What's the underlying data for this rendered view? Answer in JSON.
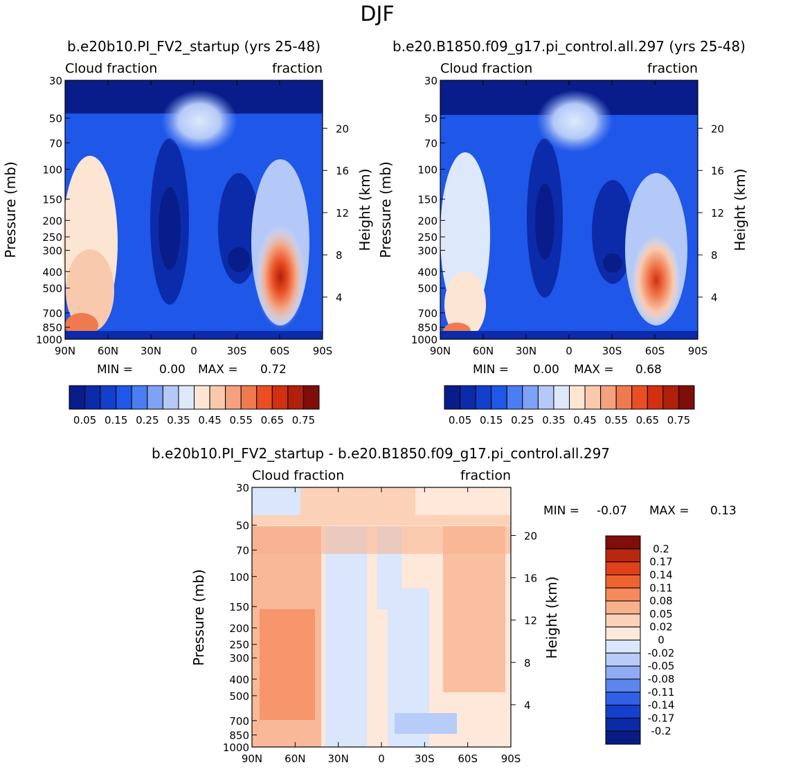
{
  "page_title": "DJF",
  "chart_data": [
    {
      "type": "heatmap",
      "title": "b.e20b10.PI_FV2_startup (yrs 25-48)",
      "left_label": "Cloud fraction",
      "right_label": "fraction",
      "ylabel": "Pressure (mb)",
      "ylabel_right": "Height (km)",
      "x_ticks": [
        "90N",
        "60N",
        "30N",
        "0",
        "30S",
        "60S",
        "90S"
      ],
      "y_ticks": [
        "30",
        "50",
        "70",
        "100",
        "150",
        "200",
        "250",
        "300",
        "400",
        "500",
        "700",
        "850",
        "1000"
      ],
      "height_ticks": [
        "20",
        "16",
        "12",
        "8",
        "4"
      ],
      "stats": {
        "min_label": "MIN =",
        "min": "0.00",
        "max_label": "MAX =",
        "max": "0.72"
      },
      "colorbar": {
        "labels": [
          "0.05",
          "0.15",
          "0.25",
          "0.35",
          "0.45",
          "0.55",
          "0.65",
          "0.75"
        ],
        "colors": [
          "#081d8a",
          "#0b2bab",
          "#1240cc",
          "#1f57e8",
          "#4a7ef2",
          "#7ea2f5",
          "#b4c9f8",
          "#dde9fb",
          "#fde5d3",
          "#f9c9ad",
          "#f5a17e",
          "#f07a50",
          "#ea4e22",
          "#d2300e",
          "#b0200a",
          "#7f0d0a"
        ]
      }
    },
    {
      "type": "heatmap",
      "title": "b.e20.B1850.f09_g17.pi_control.all.297 (yrs 25-48)",
      "left_label": "Cloud fraction",
      "right_label": "fraction",
      "ylabel": "Pressure (mb)",
      "ylabel_right": "Height (km)",
      "x_ticks": [
        "90N",
        "60N",
        "30N",
        "0",
        "30S",
        "60S",
        "90S"
      ],
      "y_ticks": [
        "30",
        "50",
        "70",
        "100",
        "150",
        "200",
        "250",
        "300",
        "400",
        "500",
        "700",
        "850",
        "1000"
      ],
      "height_ticks": [
        "20",
        "16",
        "12",
        "8",
        "4"
      ],
      "stats": {
        "min_label": "MIN =",
        "min": "0.00",
        "max_label": "MAX =",
        "max": "0.68"
      },
      "colorbar": {
        "labels": [
          "0.05",
          "0.15",
          "0.25",
          "0.35",
          "0.45",
          "0.55",
          "0.65",
          "0.75"
        ],
        "colors": [
          "#081d8a",
          "#0b2bab",
          "#1240cc",
          "#1f57e8",
          "#4a7ef2",
          "#7ea2f5",
          "#b4c9f8",
          "#dde9fb",
          "#fde5d3",
          "#f9c9ad",
          "#f5a17e",
          "#f07a50",
          "#ea4e22",
          "#d2300e",
          "#b0200a",
          "#7f0d0a"
        ]
      }
    },
    {
      "type": "heatmap",
      "title": "b.e20b10.PI_FV2_startup - b.e20.B1850.f09_g17.pi_control.all.297",
      "left_label": "Cloud fraction",
      "right_label": "fraction",
      "ylabel": "Pressure (mb)",
      "ylabel_right": "Height (km)",
      "x_ticks": [
        "90N",
        "60N",
        "30N",
        "0",
        "30S",
        "60S",
        "90S"
      ],
      "y_ticks": [
        "30",
        "50",
        "70",
        "100",
        "150",
        "200",
        "250",
        "300",
        "400",
        "500",
        "700",
        "850",
        "1000"
      ],
      "height_ticks": [
        "20",
        "16",
        "12",
        "8",
        "4"
      ],
      "stats": {
        "min_label": "MIN =",
        "min": "-0.07",
        "max_label": "MAX =",
        "max": "0.13"
      },
      "colorbar": {
        "labels": [
          "0.2",
          "0.17",
          "0.14",
          "0.11",
          "0.08",
          "0.05",
          "0.02",
          "0",
          "-0.02",
          "-0.05",
          "-0.08",
          "-0.11",
          "-0.14",
          "-0.17",
          "-0.2"
        ],
        "colors": [
          "#7f0d0a",
          "#b8280d",
          "#e0411b",
          "#f0632e",
          "#f58a5c",
          "#f8b08d",
          "#fbd2b8",
          "#fde8da",
          "#d9e6fb",
          "#b7ccf8",
          "#8eabf4",
          "#5c86ee",
          "#2f60e6",
          "#1540cf",
          "#0b2aa8",
          "#081c85"
        ]
      }
    }
  ]
}
